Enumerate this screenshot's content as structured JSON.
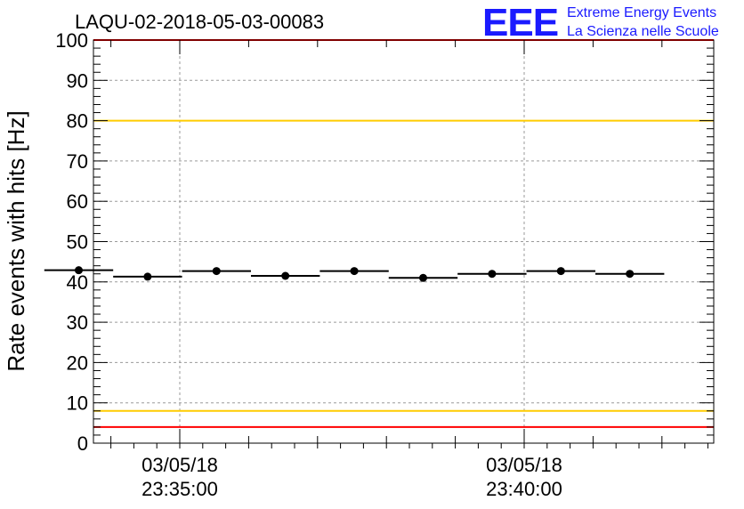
{
  "chart_data": {
    "type": "scatter",
    "title": "LAQU-02-2018-05-03-00083",
    "ylabel": "Rate events with hits [Hz]",
    "xlabel": "",
    "ylim": [
      0,
      100
    ],
    "y_ticks": [
      0,
      10,
      20,
      30,
      40,
      50,
      60,
      70,
      80,
      90,
      100
    ],
    "x_tick_labels": [
      {
        "date": "03/05/18",
        "time": "23:35:00"
      },
      {
        "date": "03/05/18",
        "time": "23:40:00"
      }
    ],
    "grid": true,
    "points": [
      {
        "time": "23:33:32",
        "value": 42.9
      },
      {
        "time": "23:34:32",
        "value": 41.3
      },
      {
        "time": "23:35:32",
        "value": 42.7
      },
      {
        "time": "23:36:32",
        "value": 41.5
      },
      {
        "time": "23:37:32",
        "value": 42.7
      },
      {
        "time": "23:38:32",
        "value": 41.0
      },
      {
        "time": "23:39:32",
        "value": 42.0
      },
      {
        "time": "23:40:32",
        "value": 42.7
      },
      {
        "time": "23:41:32",
        "value": 42.0
      }
    ],
    "bin_width_seconds": 60,
    "reference_lines": [
      {
        "value": 100,
        "color": "#ff0000"
      },
      {
        "value": 80,
        "color": "#ffcc00"
      },
      {
        "value": 8,
        "color": "#ffcc00"
      },
      {
        "value": 4,
        "color": "#ff0000"
      }
    ]
  },
  "logo": {
    "letters": "EEE",
    "line1": "Extreme Energy Events",
    "line2": "La Scienza nelle Scuole"
  }
}
